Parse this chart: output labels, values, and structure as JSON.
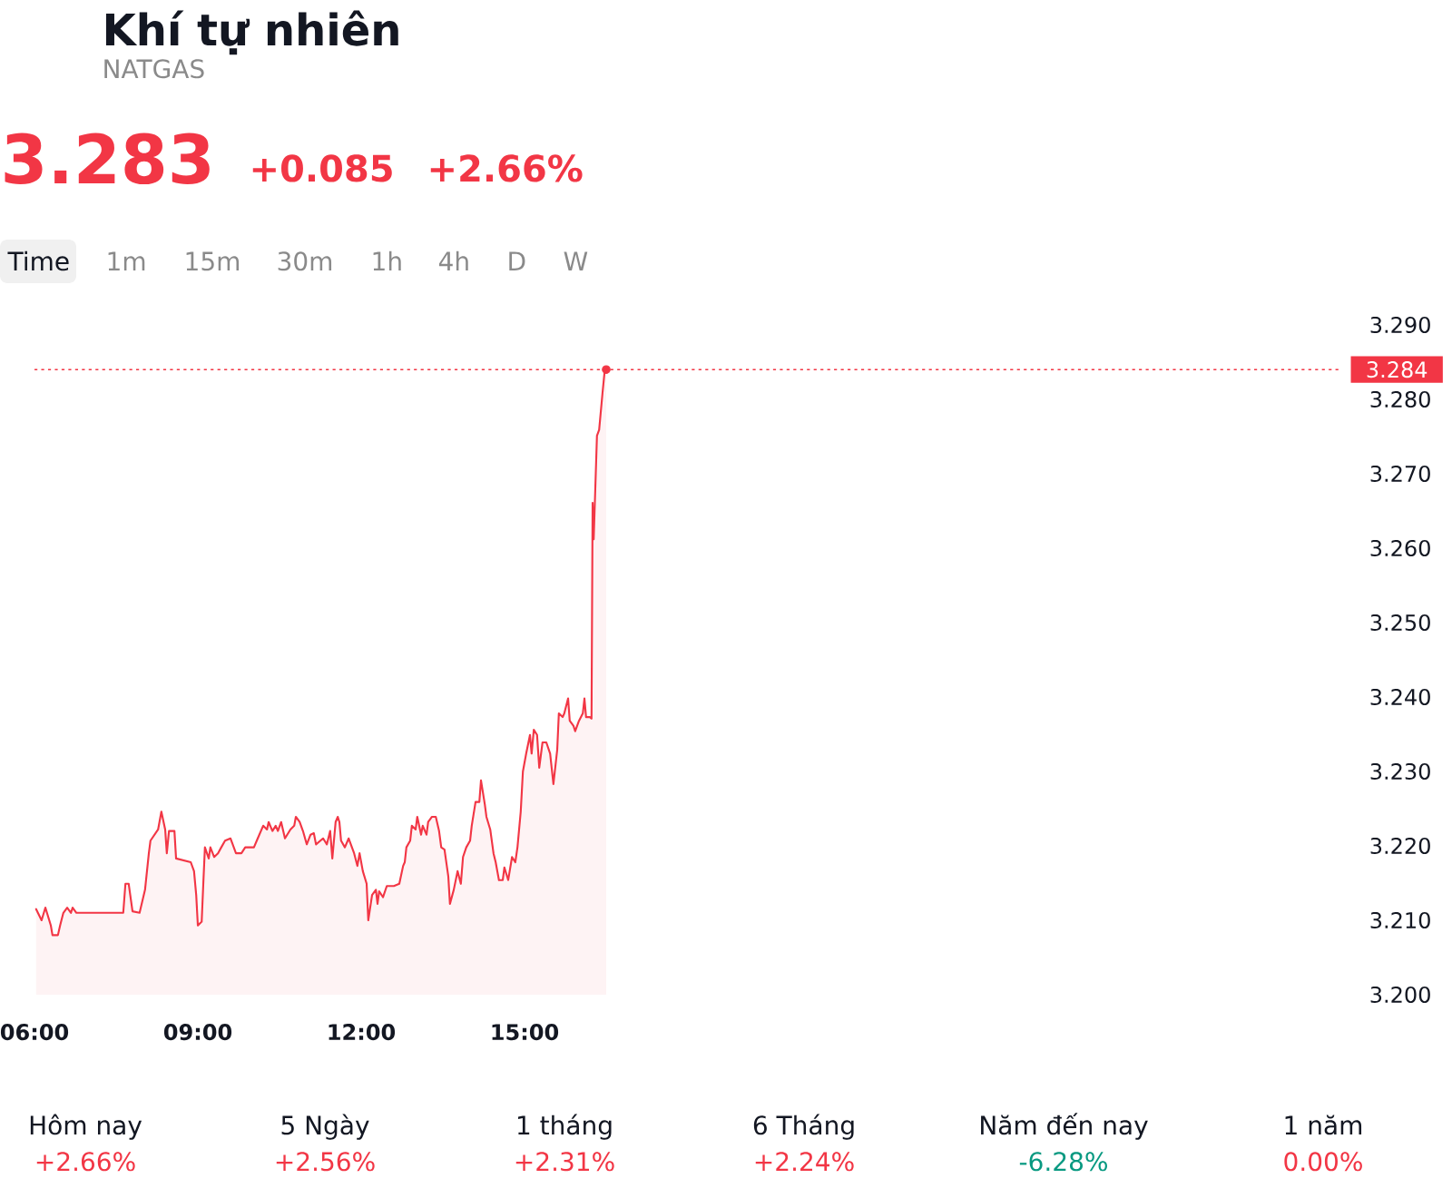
{
  "chart_data": {
    "type": "area",
    "title": "Khí tự nhiên",
    "subtitle": "NATGAS",
    "annotations": [
      "3.283",
      "+0.085",
      "+2.66%",
      "Time",
      "1m",
      "15m",
      "30m",
      "1h",
      "4h",
      "D",
      "W",
      "Hôm nay",
      "+2.66%",
      "5 Ngày",
      "+2.56%",
      "1 tháng",
      "+2.31%",
      "6 Tháng",
      "+2.24%",
      "Năm đến nay",
      "-6.28%",
      "1 năm",
      "0.00%"
    ],
    "series": [
      {
        "color": "#f23645",
        "x": [
          6.03,
          6.13,
          6.2,
          6.3,
          6.33,
          6.43,
          6.47,
          6.53,
          6.6,
          6.67,
          6.7,
          6.77,
          7.63,
          7.67,
          7.73,
          7.8,
          7.93,
          8.03,
          8.1,
          8.13,
          8.27,
          8.33,
          8.4,
          8.43,
          8.47,
          8.57,
          8.6,
          8.87,
          8.93,
          8.97,
          9.0,
          9.07,
          9.1,
          9.13,
          9.2,
          9.23,
          9.3,
          9.37,
          9.43,
          9.5,
          9.6,
          9.7,
          9.8,
          9.87,
          10.03,
          10.1,
          10.2,
          10.27,
          10.3,
          10.37,
          10.43,
          10.47,
          10.53,
          10.6,
          10.7,
          10.77,
          10.8,
          10.87,
          10.93,
          11.0,
          11.07,
          11.13,
          11.17,
          11.3,
          11.37,
          11.43,
          11.47,
          11.53,
          11.57,
          11.6,
          11.63,
          11.7,
          11.77,
          11.87,
          11.93,
          11.97,
          12.03,
          12.1,
          12.13,
          12.2,
          12.27,
          12.3,
          12.33,
          12.4,
          12.47,
          12.6,
          12.7,
          12.77,
          12.8,
          12.83,
          12.9,
          12.93,
          13.0,
          13.03,
          13.1,
          13.13,
          13.2,
          13.23,
          13.3,
          13.37,
          13.43,
          13.47,
          13.53,
          13.6,
          13.63,
          13.7,
          13.77,
          13.83,
          13.87,
          13.93,
          14.0,
          14.03,
          14.1,
          14.17,
          14.2,
          14.27,
          14.3,
          14.37,
          14.43,
          14.47,
          14.53,
          14.6,
          14.63,
          14.7,
          14.77,
          14.83,
          14.87,
          14.93,
          14.97,
          15.03,
          15.1,
          15.13,
          15.17,
          15.23,
          15.27,
          15.33,
          15.4,
          15.47,
          15.53,
          15.6,
          15.63,
          15.7,
          15.73,
          15.8,
          15.83,
          15.9,
          15.93,
          16.0,
          16.07,
          16.1,
          16.13,
          16.2,
          16.23,
          16.25,
          16.27,
          16.33,
          16.37,
          16.43,
          16.47,
          16.5
        ],
        "values": [
          3.2115,
          3.21,
          3.2117,
          3.2093,
          3.208,
          3.208,
          3.2093,
          3.211,
          3.2117,
          3.211,
          3.2117,
          3.211,
          3.211,
          3.2149,
          3.2149,
          3.2112,
          3.211,
          3.2141,
          3.219,
          3.2207,
          3.2222,
          3.2246,
          3.2222,
          3.219,
          3.222,
          3.222,
          3.2183,
          3.2178,
          3.2166,
          3.2134,
          3.2093,
          3.2098,
          3.2149,
          3.2198,
          3.2183,
          3.2198,
          3.2185,
          3.219,
          3.2198,
          3.2207,
          3.221,
          3.219,
          3.219,
          3.2198,
          3.2198,
          3.221,
          3.2227,
          3.2222,
          3.2232,
          3.222,
          3.2227,
          3.222,
          3.2232,
          3.221,
          3.2222,
          3.2227,
          3.2239,
          3.2232,
          3.222,
          3.2202,
          3.2215,
          3.2217,
          3.2202,
          3.221,
          3.2202,
          3.222,
          3.2183,
          3.2232,
          3.2239,
          3.2232,
          3.2207,
          3.2198,
          3.221,
          3.219,
          3.2173,
          3.219,
          3.2166,
          3.2149,
          3.21,
          3.2134,
          3.2141,
          3.2122,
          3.2139,
          3.2131,
          3.2146,
          3.2146,
          3.2149,
          3.2173,
          3.2178,
          3.2198,
          3.2207,
          3.2227,
          3.2222,
          3.2239,
          3.2215,
          3.2227,
          3.2215,
          3.2232,
          3.2239,
          3.2239,
          3.222,
          3.2198,
          3.2195,
          3.2159,
          3.2122,
          3.2141,
          3.2166,
          3.2149,
          3.2185,
          3.2198,
          3.2207,
          3.2227,
          3.2259,
          3.2259,
          3.2288,
          3.2256,
          3.2239,
          3.2222,
          3.219,
          3.2178,
          3.2154,
          3.2154,
          3.2171,
          3.2154,
          3.2185,
          3.2178,
          3.2198,
          3.2246,
          3.23,
          3.2324,
          3.2349,
          3.2324,
          3.2356,
          3.2349,
          3.2305,
          3.2339,
          3.2339,
          3.2324,
          3.2283,
          3.2329,
          3.2378,
          3.2373,
          3.2378,
          3.2398,
          3.2368,
          3.2361,
          3.2354,
          3.2368,
          3.2378,
          3.2398,
          3.2373,
          3.2373,
          3.2371,
          3.2661,
          3.2612,
          3.2751,
          3.2759,
          3.2807,
          3.2837,
          3.284
        ]
      },
      {
        "type": "scatter",
        "color": "#f23645",
        "x": [
          16.5
        ],
        "values": [
          3.284
        ]
      }
    ],
    "xlim": [
      6,
      30
    ],
    "xticks": [
      {
        "value": 6,
        "label": "06:00"
      },
      {
        "value": 9,
        "label": "09:00"
      },
      {
        "value": 12,
        "label": "12:00"
      },
      {
        "value": 15,
        "label": "15:00"
      }
    ],
    "ylim": [
      3.2,
      3.29
    ],
    "yticks": [
      {
        "value": 3.2,
        "label": "3.200"
      },
      {
        "value": 3.21,
        "label": "3.210"
      },
      {
        "value": 3.22,
        "label": "3.220"
      },
      {
        "value": 3.23,
        "label": "3.230"
      },
      {
        "value": 3.24,
        "label": "3.240"
      },
      {
        "value": 3.25,
        "label": "3.250"
      },
      {
        "value": 3.26,
        "label": "3.260"
      },
      {
        "value": 3.27,
        "label": "3.270"
      },
      {
        "value": 3.28,
        "label": "3.280"
      },
      {
        "value": 3.29,
        "label": "3.290"
      }
    ],
    "ref_lines": [
      {
        "axis": "y",
        "value": 3.284,
        "label": "3.284",
        "color": "#f23645",
        "line_style": "dotted"
      }
    ]
  }
}
